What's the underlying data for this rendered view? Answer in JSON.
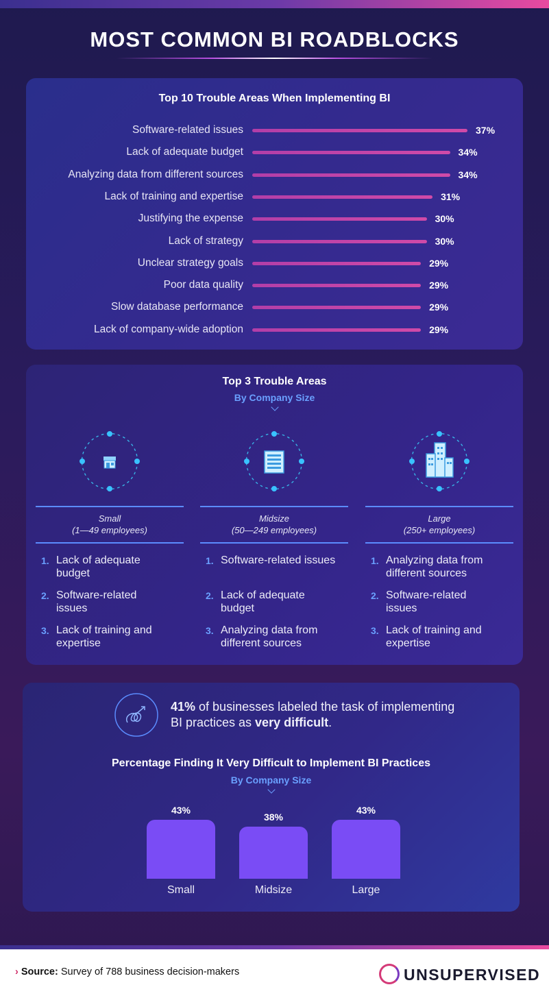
{
  "page": {
    "title": "MOST COMMON BI ROADBLOCKS"
  },
  "colors": {
    "bar_pink": "#c445a8",
    "bar_purple": "#7a4cf5",
    "accent_blue": "#6aa0ff",
    "brand_pink": "#d43a78"
  },
  "chart_data": [
    {
      "type": "bar",
      "orientation": "horizontal",
      "title": "Top 10 Trouble Areas When Implementing BI",
      "categories": [
        "Software-related issues",
        "Lack of adequate budget",
        "Analyzing data from different sources",
        "Lack of training and expertise",
        "Justifying the expense",
        "Lack of strategy",
        "Unclear strategy goals",
        "Poor data quality",
        "Slow database performance",
        "Lack of company-wide adoption"
      ],
      "values": [
        37,
        34,
        34,
        31,
        30,
        30,
        29,
        29,
        29,
        29
      ],
      "labels": [
        "37%",
        "34%",
        "34%",
        "31%",
        "30%",
        "30%",
        "29%",
        "29%",
        "29%",
        "29%"
      ],
      "unit": "%",
      "grid": false
    },
    {
      "type": "bar",
      "orientation": "vertical",
      "title": "Percentage Finding It Very Difficult to Implement BI Practices",
      "subtitle": "By Company Size",
      "categories": [
        "Small",
        "Midsize",
        "Large"
      ],
      "values": [
        43,
        38,
        43
      ],
      "labels": [
        "43%",
        "38%",
        "43%"
      ],
      "unit": "%",
      "grid": false
    }
  ],
  "top3": {
    "title": "Top 3 Trouble Areas",
    "subtitle": "By Company Size",
    "columns": [
      {
        "icon": "storefront-icon",
        "name": "Small",
        "range": "(1—49 employees)",
        "items": [
          {
            "num": "1.",
            "lines": [
              "Lack of adequate",
              "budget"
            ]
          },
          {
            "num": "2.",
            "lines": [
              "Software-related",
              "issues"
            ]
          },
          {
            "num": "3.",
            "lines": [
              "Lack of training and",
              "expertise"
            ]
          }
        ]
      },
      {
        "icon": "office-building-icon",
        "name": "Midsize",
        "range": "(50—249 employees)",
        "items": [
          {
            "num": "1.",
            "lines": [
              "Software-related issues",
              ""
            ]
          },
          {
            "num": "2.",
            "lines": [
              "Lack of adequate",
              "budget"
            ]
          },
          {
            "num": "3.",
            "lines": [
              "Analyzing data from",
              "different sources"
            ]
          }
        ]
      },
      {
        "icon": "skyscraper-icon",
        "name": "Large",
        "range": "(250+ employees)",
        "items": [
          {
            "num": "1.",
            "lines": [
              "Analyzing data from",
              "different sources"
            ]
          },
          {
            "num": "2.",
            "lines": [
              "Software-related",
              "issues"
            ]
          },
          {
            "num": "3.",
            "lines": [
              "Lack of training and",
              "expertise"
            ]
          }
        ]
      }
    ]
  },
  "statement": {
    "icon": "tangled-arrow-icon",
    "pct": "41%",
    "text_a": " of businesses labeled the task of implementing BI practices as ",
    "emph": "very difficult",
    "text_b": "."
  },
  "footer": {
    "source_label": "Source:",
    "source_text": " Survey of 788 business decision-makers",
    "logo_text": "UNSUPERVISED"
  }
}
